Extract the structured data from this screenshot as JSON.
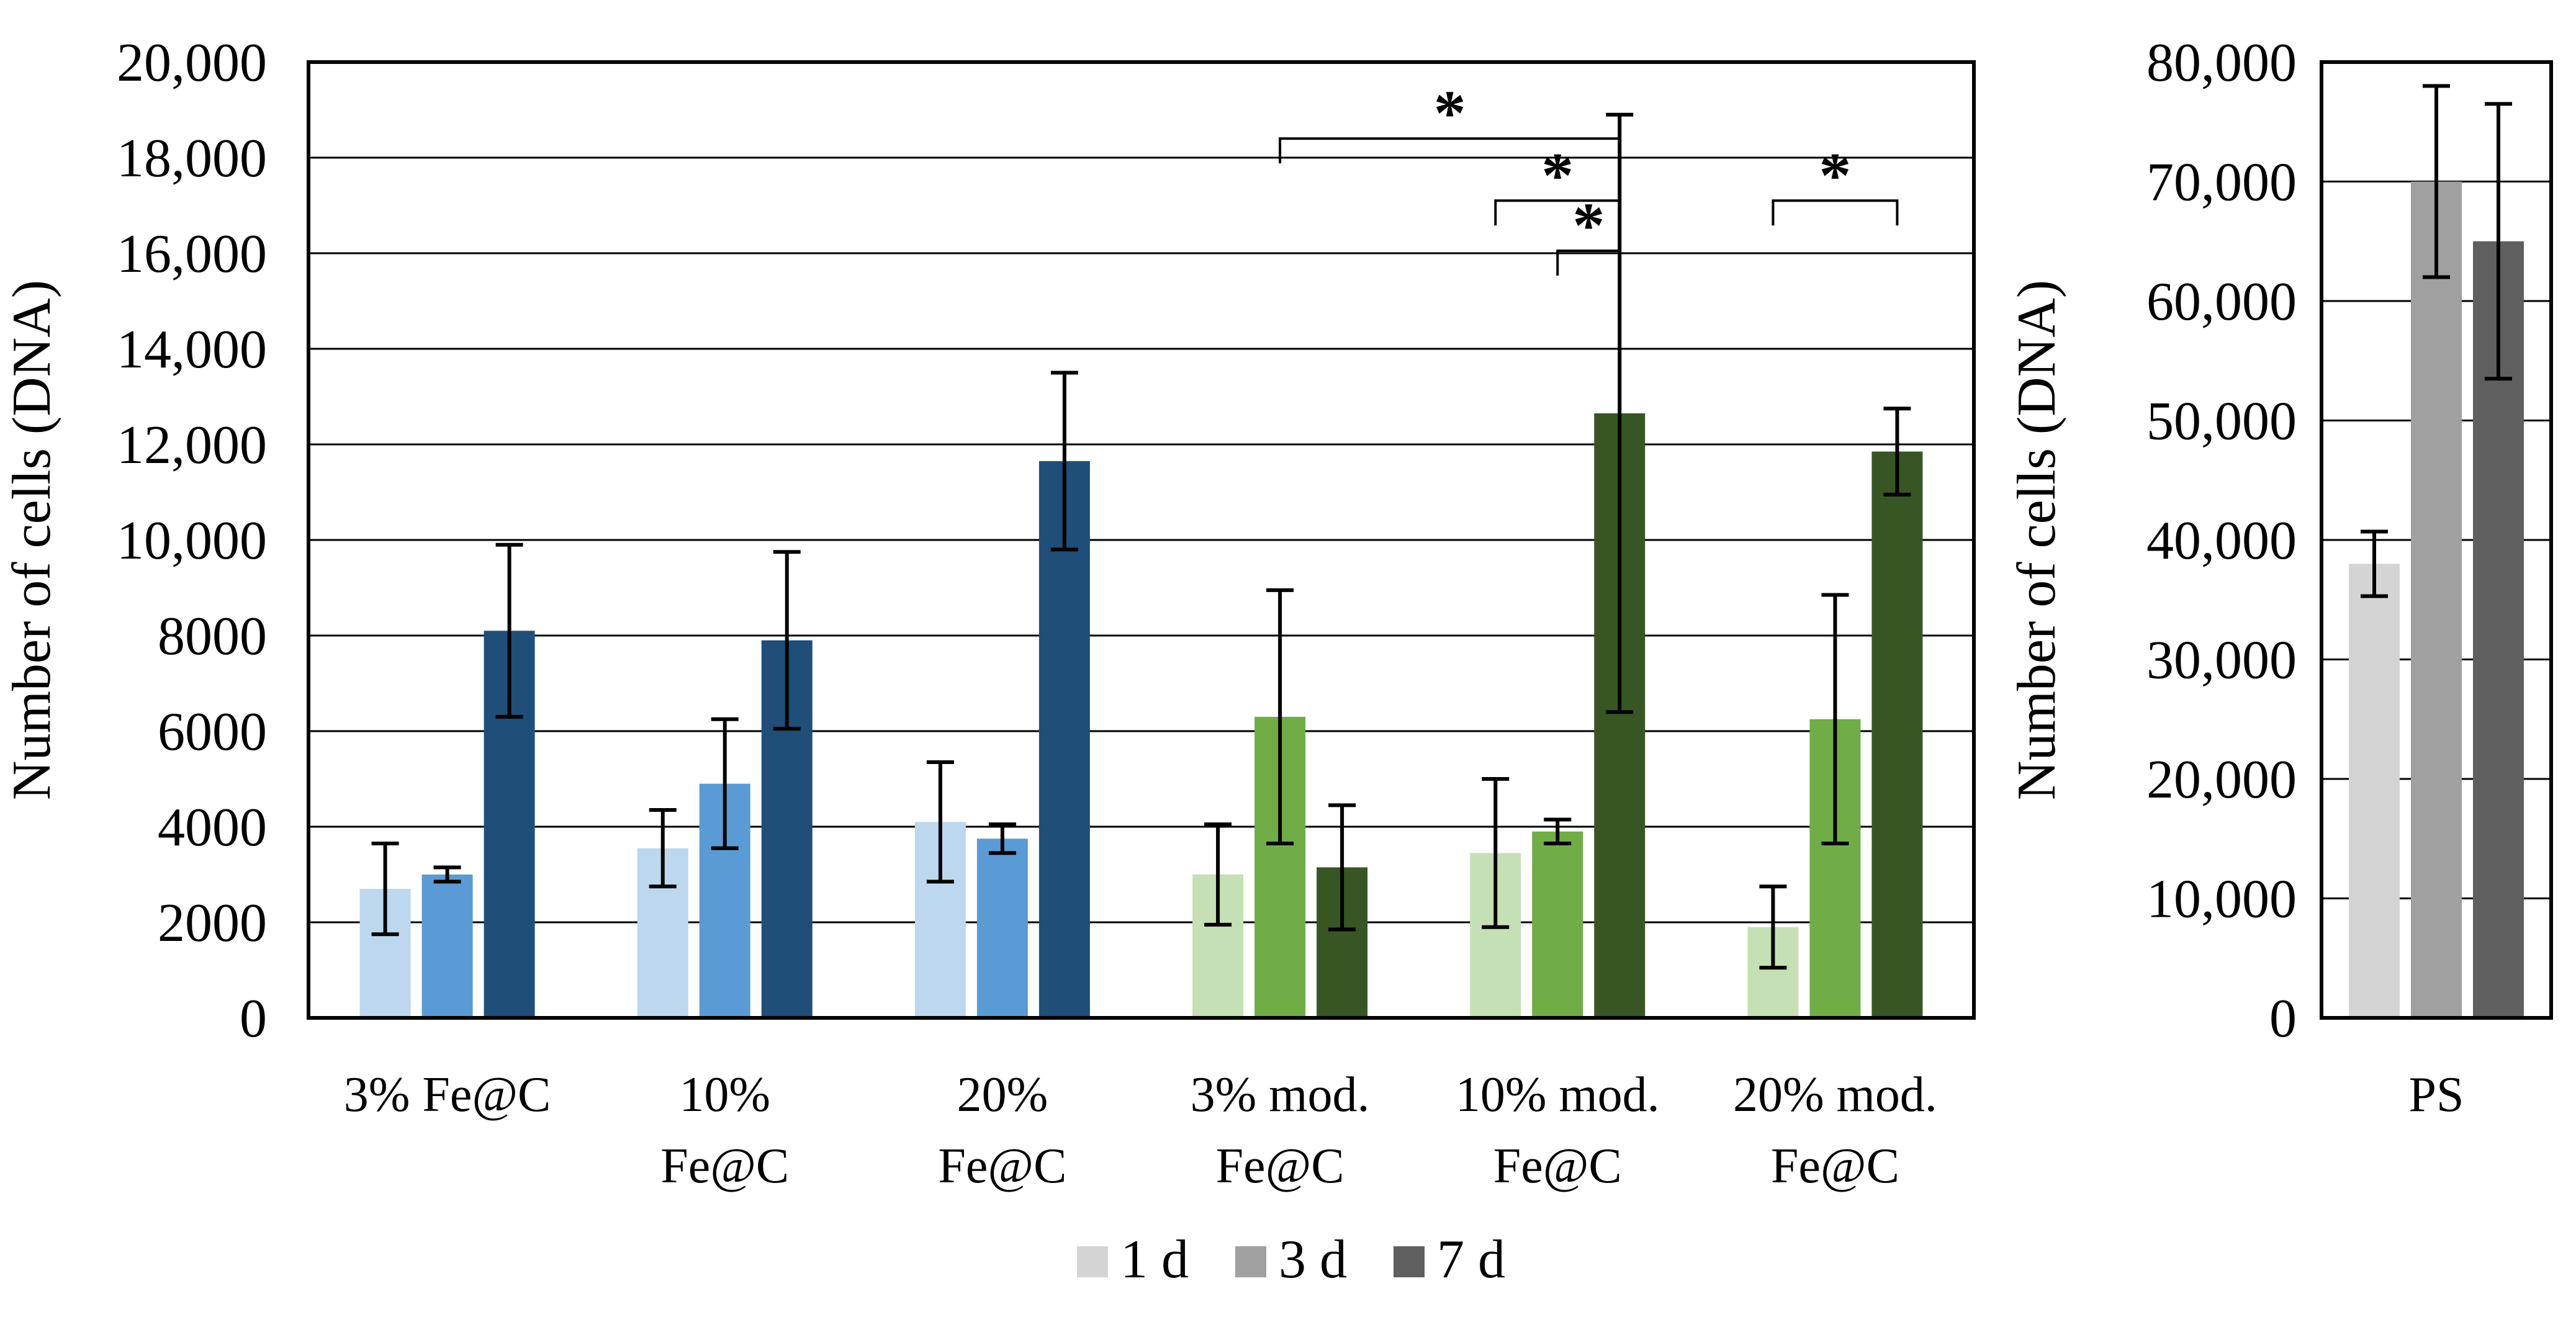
{
  "chart_data": [
    {
      "type": "bar",
      "ylabel": "Number of cells (DNA)",
      "ylim": [
        0,
        20000
      ],
      "yticks": [
        0,
        2000,
        4000,
        6000,
        8000,
        10000,
        12000,
        14000,
        16000,
        18000,
        20000
      ],
      "ytick_labels": [
        "0",
        "2000",
        "4000",
        "6000",
        "8000",
        "10,000",
        "12,000",
        "14,000",
        "16,000",
        "18,000",
        "20,000"
      ],
      "grid": true,
      "groups": [
        {
          "label": [
            "3% Fe@C"
          ],
          "family": "blue",
          "values": [
            2700,
            3000,
            8100
          ],
          "errors": [
            950,
            150,
            1800
          ]
        },
        {
          "label": [
            "10%",
            "Fe@C"
          ],
          "family": "blue",
          "values": [
            3550,
            4900,
            7900
          ],
          "errors": [
            800,
            1350,
            1850
          ]
        },
        {
          "label": [
            "20%",
            "Fe@C"
          ],
          "family": "blue",
          "values": [
            4100,
            3750,
            11650
          ],
          "errors": [
            1250,
            300,
            1850
          ]
        },
        {
          "label": [
            "3% mod.",
            "Fe@C"
          ],
          "family": "green",
          "values": [
            3000,
            6300,
            3150
          ],
          "errors": [
            1050,
            2650,
            1300
          ]
        },
        {
          "label": [
            "10% mod.",
            "Fe@C"
          ],
          "family": "green",
          "values": [
            3450,
            3900,
            12650
          ],
          "errors": [
            1550,
            250,
            6250
          ]
        },
        {
          "label": [
            "20% mod.",
            "Fe@C"
          ],
          "family": "green",
          "values": [
            1900,
            6250,
            11850
          ],
          "errors": [
            850,
            2600,
            900
          ]
        }
      ],
      "significance": [
        {
          "label": "*",
          "from_group": 3,
          "from_bar": 1,
          "to_group": 4,
          "to_bar": 2,
          "y": 18400
        },
        {
          "label": "*",
          "from_group": 4,
          "from_bar": 0,
          "to_group": 4,
          "to_bar": 2,
          "y": 17100
        },
        {
          "label": "*",
          "from_group": 4,
          "from_bar": 1,
          "to_group": 4,
          "to_bar": 2,
          "y": 16050
        },
        {
          "label": "*",
          "from_group": 5,
          "from_bar": 0,
          "to_group": 5,
          "to_bar": 2,
          "y": 17100
        }
      ]
    },
    {
      "type": "bar",
      "ylabel": "Number of cells (DNA)",
      "ylim": [
        0,
        80000
      ],
      "yticks": [
        0,
        10000,
        20000,
        30000,
        40000,
        50000,
        60000,
        70000,
        80000
      ],
      "ytick_labels": [
        "0",
        "10,000",
        "20,000",
        "30,000",
        "40,000",
        "50,000",
        "60,000",
        "70,000",
        "80,000"
      ],
      "grid": true,
      "groups": [
        {
          "label": [
            "PS"
          ],
          "family": "gray",
          "values": [
            38000,
            70000,
            65000
          ],
          "errors": [
            2700,
            8000,
            11500
          ]
        }
      ]
    }
  ],
  "legend": {
    "placement": "bottom-center",
    "entries": [
      {
        "label": "1 d",
        "color": "#d4d4d4"
      },
      {
        "label": "3 d",
        "color": "#a0a0a0"
      },
      {
        "label": "7 d",
        "color": "#5f5f5f"
      }
    ]
  },
  "colors": {
    "blue": [
      "#bdd7ee",
      "#5b9bd5",
      "#1f4e79"
    ],
    "green": [
      "#c5e0b4",
      "#70ad47",
      "#375623"
    ],
    "gray": [
      "#d4d4d4",
      "#a0a0a0",
      "#5f5f5f"
    ],
    "grid": "#000000",
    "errorbar": "#000000"
  }
}
